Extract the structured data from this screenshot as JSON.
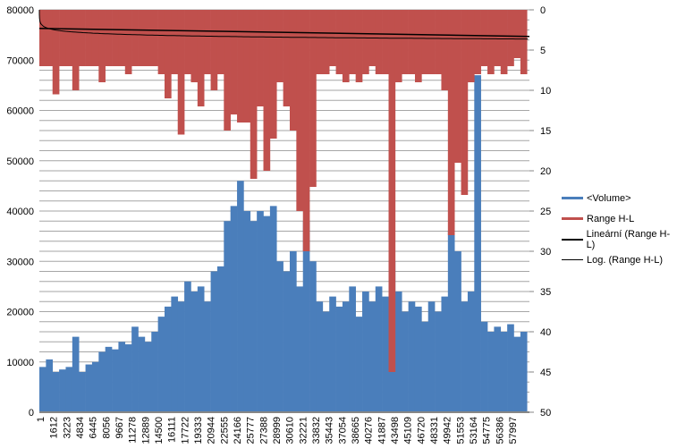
{
  "chart_data": {
    "type": "bar",
    "x_ticks": [
      "1",
      "1612",
      "3223",
      "4834",
      "6445",
      "8056",
      "9667",
      "11278",
      "12889",
      "14500",
      "16111",
      "17722",
      "19333",
      "20944",
      "22555",
      "24166",
      "25777",
      "27388",
      "28999",
      "30610",
      "32221",
      "33832",
      "35443",
      "37054",
      "38665",
      "40276",
      "41887",
      "43498",
      "45109",
      "46720",
      "48331",
      "49942",
      "51553",
      "53164",
      "54775",
      "56386",
      "57997"
    ],
    "x_range": [
      1,
      59500
    ],
    "y_left": {
      "range": [
        0,
        80000
      ],
      "ticks": [
        0,
        10000,
        20000,
        30000,
        40000,
        50000,
        60000,
        70000,
        80000
      ],
      "grid_step": 2000
    },
    "y_right": {
      "range": [
        0,
        50
      ],
      "reversed": true,
      "ticks": [
        0,
        5,
        10,
        15,
        20,
        25,
        30,
        35,
        40,
        45,
        50
      ]
    },
    "sample_step": 800,
    "series": [
      {
        "name": "<Volume>",
        "axis": "left",
        "color": "#4a7ebb",
        "values": [
          9000,
          10500,
          8000,
          8500,
          9000,
          15000,
          8000,
          9500,
          10000,
          12000,
          13000,
          12500,
          14000,
          13500,
          17000,
          15000,
          14000,
          16000,
          19000,
          21000,
          23000,
          22000,
          26000,
          24000,
          25000,
          22000,
          28000,
          29000,
          38000,
          41000,
          46000,
          40000,
          38000,
          40000,
          39000,
          41000,
          30000,
          28000,
          32000,
          25000,
          38000,
          30000,
          22000,
          20000,
          23000,
          21000,
          22000,
          25000,
          19000,
          24000,
          22000,
          25000,
          23000,
          30000,
          24000,
          20000,
          22000,
          21000,
          18000,
          22000,
          20000,
          23000,
          36000,
          32000,
          22000,
          24000,
          67000,
          18000,
          16000,
          17000,
          16000,
          17500,
          15000,
          16000
        ]
      },
      {
        "name": "Range H-L",
        "axis": "right",
        "color": "#c0504d",
        "values": [
          7,
          7,
          10.5,
          7,
          7,
          10,
          7,
          7,
          7,
          9,
          7,
          7,
          7,
          8,
          7,
          7,
          7,
          7,
          8,
          11,
          8,
          15.5,
          8,
          9,
          12,
          8,
          10,
          8,
          15,
          13,
          14,
          14,
          21,
          12,
          20,
          16,
          9,
          12,
          15,
          25,
          30,
          22,
          8,
          8,
          7,
          8,
          9,
          8,
          9,
          8,
          7,
          8,
          8,
          45,
          9,
          8,
          8,
          9,
          8,
          8,
          8,
          10,
          28,
          19,
          23,
          9,
          8,
          7,
          8,
          7,
          8,
          7,
          6,
          8
        ]
      },
      {
        "name": "Lineární (Range H-L)",
        "type": "linear-trend",
        "start": 2.3,
        "end": 3.3,
        "color": "#000000"
      },
      {
        "name": "Log. (Range H-L)",
        "type": "log-trend",
        "coef": 0.33,
        "color": "#000000"
      }
    ]
  }
}
